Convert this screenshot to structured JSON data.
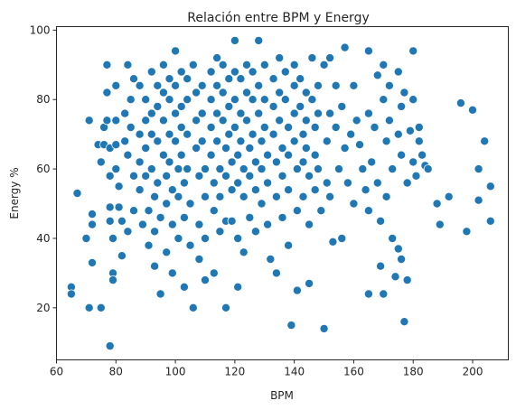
{
  "chart_data": {
    "type": "scatter",
    "title": "Relación entre BPM y Energy",
    "xlabel": "BPM",
    "ylabel": "Energy %",
    "xlim": [
      60,
      212
    ],
    "ylim": [
      5,
      101
    ],
    "xticks": [
      60,
      80,
      100,
      120,
      140,
      160,
      180,
      200
    ],
    "yticks": [
      20,
      40,
      60,
      80,
      100
    ],
    "grid": false,
    "legend": "none",
    "colors": {
      "point": "#1f77b4",
      "point_edge": "#ffffff",
      "axis": "#262626"
    },
    "points": [
      [
        65,
        26
      ],
      [
        65,
        24
      ],
      [
        67,
        53
      ],
      [
        71,
        74
      ],
      [
        70,
        40
      ],
      [
        72,
        47
      ],
      [
        72,
        44
      ],
      [
        72,
        33
      ],
      [
        71,
        20
      ],
      [
        74,
        67
      ],
      [
        75,
        62
      ],
      [
        76,
        72
      ],
      [
        76,
        67
      ],
      [
        75,
        20
      ],
      [
        78,
        9
      ],
      [
        77,
        90
      ],
      [
        77,
        82
      ],
      [
        77,
        74
      ],
      [
        78,
        66
      ],
      [
        78,
        58
      ],
      [
        78,
        49
      ],
      [
        78,
        45
      ],
      [
        79,
        40
      ],
      [
        79,
        30
      ],
      [
        79,
        28
      ],
      [
        80,
        84
      ],
      [
        80,
        74
      ],
      [
        80,
        67
      ],
      [
        80,
        60
      ],
      [
        81,
        55
      ],
      [
        81,
        49
      ],
      [
        82,
        45
      ],
      [
        82,
        35
      ],
      [
        83,
        76
      ],
      [
        83,
        68
      ],
      [
        84,
        90
      ],
      [
        84,
        64
      ],
      [
        84,
        42
      ],
      [
        85,
        80
      ],
      [
        85,
        72
      ],
      [
        86,
        86
      ],
      [
        86,
        58
      ],
      [
        86,
        48
      ],
      [
        88,
        84
      ],
      [
        88,
        70
      ],
      [
        88,
        62
      ],
      [
        88,
        54
      ],
      [
        89,
        44
      ],
      [
        90,
        80
      ],
      [
        90,
        74
      ],
      [
        90,
        66
      ],
      [
        90,
        58
      ],
      [
        91,
        48
      ],
      [
        91,
        38
      ],
      [
        92,
        88
      ],
      [
        92,
        76
      ],
      [
        92,
        70
      ],
      [
        92,
        60
      ],
      [
        93,
        52
      ],
      [
        93,
        42
      ],
      [
        93,
        32
      ],
      [
        94,
        84
      ],
      [
        94,
        78
      ],
      [
        94,
        68
      ],
      [
        94,
        56
      ],
      [
        95,
        46
      ],
      [
        95,
        24
      ],
      [
        96,
        90
      ],
      [
        96,
        82
      ],
      [
        96,
        74
      ],
      [
        96,
        64
      ],
      [
        97,
        58
      ],
      [
        97,
        50
      ],
      [
        97,
        36
      ],
      [
        98,
        86
      ],
      [
        98,
        80
      ],
      [
        98,
        70
      ],
      [
        98,
        62
      ],
      [
        99,
        54
      ],
      [
        99,
        44
      ],
      [
        99,
        30
      ],
      [
        100,
        94
      ],
      [
        100,
        84
      ],
      [
        100,
        76
      ],
      [
        100,
        68
      ],
      [
        101,
        60
      ],
      [
        101,
        52
      ],
      [
        101,
        40
      ],
      [
        102,
        88
      ],
      [
        102,
        78
      ],
      [
        102,
        72
      ],
      [
        102,
        64
      ],
      [
        103,
        56
      ],
      [
        103,
        46
      ],
      [
        103,
        26
      ],
      [
        104,
        86
      ],
      [
        104,
        80
      ],
      [
        104,
        70
      ],
      [
        104,
        60
      ],
      [
        105,
        50
      ],
      [
        105,
        38
      ],
      [
        106,
        20
      ],
      [
        106,
        90
      ],
      [
        107,
        82
      ],
      [
        107,
        74
      ],
      [
        107,
        66
      ],
      [
        108,
        58
      ],
      [
        108,
        44
      ],
      [
        108,
        34
      ],
      [
        109,
        84
      ],
      [
        109,
        76
      ],
      [
        109,
        68
      ],
      [
        110,
        60
      ],
      [
        110,
        52
      ],
      [
        110,
        40
      ],
      [
        110,
        28
      ],
      [
        112,
        88
      ],
      [
        112,
        80
      ],
      [
        112,
        72
      ],
      [
        112,
        64
      ],
      [
        113,
        56
      ],
      [
        113,
        48
      ],
      [
        113,
        30
      ],
      [
        114,
        92
      ],
      [
        114,
        84
      ],
      [
        114,
        76
      ],
      [
        114,
        68
      ],
      [
        115,
        60
      ],
      [
        115,
        52
      ],
      [
        115,
        42
      ],
      [
        116,
        90
      ],
      [
        116,
        82
      ],
      [
        116,
        74
      ],
      [
        117,
        66
      ],
      [
        117,
        58
      ],
      [
        117,
        45
      ],
      [
        117,
        20
      ],
      [
        118,
        86
      ],
      [
        118,
        78
      ],
      [
        118,
        70
      ],
      [
        119,
        62
      ],
      [
        119,
        54
      ],
      [
        119,
        45
      ],
      [
        120,
        97
      ],
      [
        120,
        88
      ],
      [
        120,
        80
      ],
      [
        120,
        72
      ],
      [
        121,
        64
      ],
      [
        121,
        56
      ],
      [
        121,
        40
      ],
      [
        121,
        26
      ],
      [
        122,
        86
      ],
      [
        122,
        76
      ],
      [
        122,
        68
      ],
      [
        123,
        60
      ],
      [
        123,
        52
      ],
      [
        123,
        36
      ],
      [
        124,
        90
      ],
      [
        124,
        82
      ],
      [
        124,
        74
      ],
      [
        125,
        66
      ],
      [
        125,
        58
      ],
      [
        125,
        46
      ],
      [
        126,
        88
      ],
      [
        126,
        80
      ],
      [
        126,
        70
      ],
      [
        127,
        62
      ],
      [
        127,
        54
      ],
      [
        127,
        42
      ],
      [
        128,
        97
      ],
      [
        128,
        84
      ],
      [
        128,
        76
      ],
      [
        129,
        68
      ],
      [
        129,
        60
      ],
      [
        129,
        50
      ],
      [
        130,
        90
      ],
      [
        130,
        80
      ],
      [
        130,
        72
      ],
      [
        131,
        64
      ],
      [
        131,
        56
      ],
      [
        131,
        44
      ],
      [
        132,
        34
      ],
      [
        133,
        86
      ],
      [
        133,
        78
      ],
      [
        133,
        70
      ],
      [
        134,
        62
      ],
      [
        134,
        52
      ],
      [
        134,
        30
      ],
      [
        135,
        92
      ],
      [
        135,
        82
      ],
      [
        135,
        74
      ],
      [
        136,
        66
      ],
      [
        136,
        58
      ],
      [
        136,
        46
      ],
      [
        137,
        88
      ],
      [
        137,
        80
      ],
      [
        138,
        72
      ],
      [
        138,
        64
      ],
      [
        138,
        54
      ],
      [
        138,
        38
      ],
      [
        139,
        15
      ],
      [
        140,
        90
      ],
      [
        140,
        84
      ],
      [
        140,
        76
      ],
      [
        140,
        68
      ],
      [
        141,
        60
      ],
      [
        141,
        48
      ],
      [
        141,
        25
      ],
      [
        142,
        86
      ],
      [
        142,
        78
      ],
      [
        143,
        70
      ],
      [
        143,
        62
      ],
      [
        143,
        52
      ],
      [
        144,
        82
      ],
      [
        144,
        74
      ],
      [
        144,
        66
      ],
      [
        145,
        58
      ],
      [
        145,
        44
      ],
      [
        145,
        27
      ],
      [
        146,
        92
      ],
      [
        146,
        80
      ],
      [
        147,
        72
      ],
      [
        147,
        64
      ],
      [
        147,
        54
      ],
      [
        148,
        84
      ],
      [
        148,
        76
      ],
      [
        148,
        60
      ],
      [
        149,
        48
      ],
      [
        150,
        14
      ],
      [
        150,
        90
      ],
      [
        151,
        68
      ],
      [
        151,
        56
      ],
      [
        152,
        92
      ],
      [
        152,
        76
      ],
      [
        152,
        52
      ],
      [
        153,
        39
      ],
      [
        154,
        84
      ],
      [
        154,
        72
      ],
      [
        155,
        60
      ],
      [
        156,
        78
      ],
      [
        156,
        40
      ],
      [
        157,
        95
      ],
      [
        157,
        66
      ],
      [
        158,
        56
      ],
      [
        159,
        70
      ],
      [
        160,
        84
      ],
      [
        160,
        50
      ],
      [
        161,
        74
      ],
      [
        162,
        67
      ],
      [
        163,
        60
      ],
      [
        164,
        54
      ],
      [
        165,
        94
      ],
      [
        165,
        76
      ],
      [
        165,
        48
      ],
      [
        165,
        24
      ],
      [
        166,
        62
      ],
      [
        167,
        72
      ],
      [
        168,
        87
      ],
      [
        168,
        56
      ],
      [
        169,
        45
      ],
      [
        169,
        32
      ],
      [
        170,
        24
      ],
      [
        170,
        90
      ],
      [
        170,
        80
      ],
      [
        171,
        68
      ],
      [
        171,
        52
      ],
      [
        172,
        84
      ],
      [
        172,
        74
      ],
      [
        173,
        60
      ],
      [
        173,
        40
      ],
      [
        174,
        29
      ],
      [
        175,
        88
      ],
      [
        175,
        70
      ],
      [
        175,
        37
      ],
      [
        176,
        78
      ],
      [
        176,
        64
      ],
      [
        176,
        34
      ],
      [
        177,
        16
      ],
      [
        177,
        82
      ],
      [
        178,
        56
      ],
      [
        178,
        28
      ],
      [
        179,
        71
      ],
      [
        180,
        94
      ],
      [
        180,
        80
      ],
      [
        180,
        62
      ],
      [
        181,
        58
      ],
      [
        182,
        72
      ],
      [
        182,
        68
      ],
      [
        183,
        64
      ],
      [
        184,
        61
      ],
      [
        185,
        60
      ],
      [
        188,
        50
      ],
      [
        189,
        44
      ],
      [
        192,
        52
      ],
      [
        196,
        79
      ],
      [
        198,
        42
      ],
      [
        200,
        77
      ],
      [
        202,
        60
      ],
      [
        202,
        51
      ],
      [
        204,
        68
      ],
      [
        206,
        55
      ],
      [
        206,
        45
      ]
    ]
  }
}
